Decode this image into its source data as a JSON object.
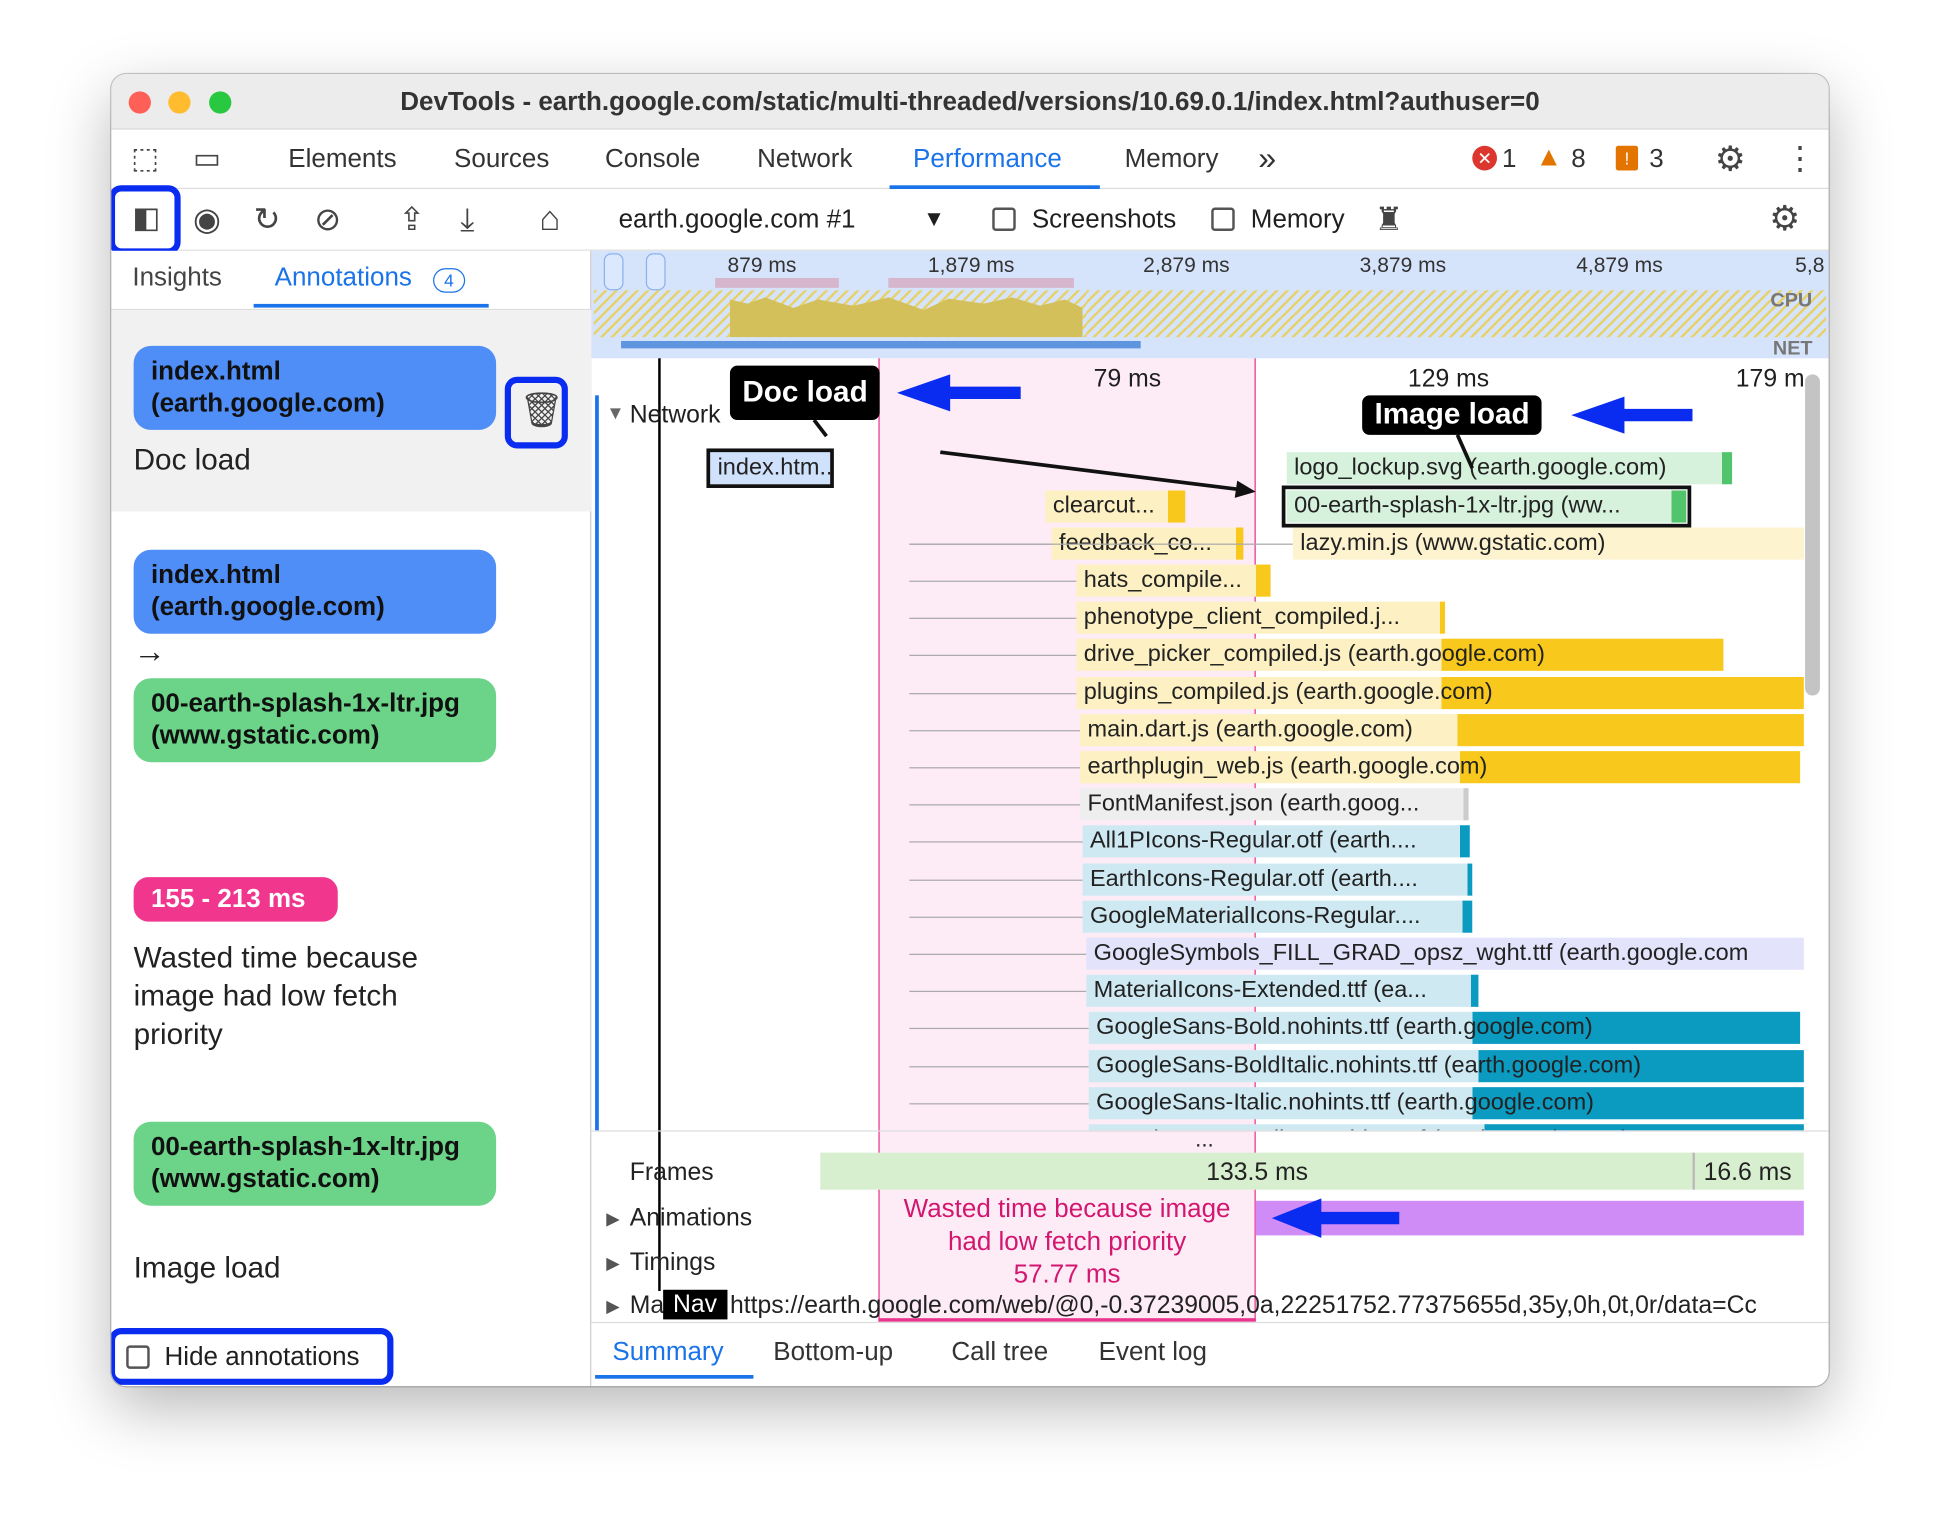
{
  "window_title": "DevTools - earth.google.com/static/multi-threaded/versions/10.69.0.1/index.html?authuser=0",
  "tabs": [
    "Elements",
    "Sources",
    "Console",
    "Network",
    "Performance",
    "Memory"
  ],
  "active_tab": "Performance",
  "more_tabs": "»",
  "status": {
    "errors": "1",
    "warnings": "8",
    "issues": "3"
  },
  "toolbar": {
    "target": "earth.google.com #1",
    "screenshots_label": "Screenshots",
    "memory_label": "Memory"
  },
  "sidebar": {
    "tabs": {
      "insights": "Insights",
      "annotations": "Annotations",
      "annotations_count": "4"
    },
    "annotations": [
      {
        "entry": "index.html (earth.google.com)",
        "label": "Doc load"
      },
      {
        "from": "index.html (earth.google.com)",
        "arrow": "→",
        "to": "00-earth-splash-1x-ltr.jpg (www.gstatic.com)"
      },
      {
        "range": "155 - 213 ms",
        "label": "Wasted time because image had low fetch priority"
      },
      {
        "entry": "00-earth-splash-1x-ltr.jpg (www.gstatic.com)",
        "label": "Image load"
      }
    ],
    "hide_annotations": "Hide annotations"
  },
  "overview": {
    "ticks": [
      "879 ms",
      "1,879 ms",
      "2,879 ms",
      "3,879 ms",
      "4,879 ms",
      "5,8"
    ],
    "cpu": "CPU",
    "net": "NET"
  },
  "timeline": {
    "ticks": [
      "79 ms",
      "129 ms",
      "179 m"
    ],
    "network_label": "Network",
    "callouts": {
      "doc": "Doc load",
      "image": "Image load"
    },
    "rows": [
      {
        "name": "index.htm...",
        "color": "#d0e1fb"
      },
      {
        "name": "logo_lockup.svg (earth.google.com)",
        "color": "#d6f2dc"
      },
      {
        "name": "clearcut...",
        "color": "#fdf0c2"
      },
      {
        "name": "00-earth-splash-1x-ltr.jpg (ww...",
        "color": "#d6f2dc"
      },
      {
        "name": "feedback_co...",
        "color": "#fdf0c2"
      },
      {
        "name": "lazy.min.js (www.gstatic.com)",
        "color": "#fdf3cf"
      },
      {
        "name": "hats_compile...",
        "color": "#fdf0c2"
      },
      {
        "name": "phenotype_client_compiled.j...",
        "color": "#fdf0c2"
      },
      {
        "name": "drive_picker_compiled.js (earth.google.com)",
        "color": "#fdf0c2"
      },
      {
        "name": "plugins_compiled.js (earth.google.com)",
        "color": "#fdf0c2"
      },
      {
        "name": "main.dart.js (earth.google.com)",
        "color": "#fdf0c2"
      },
      {
        "name": "earthplugin_web.js (earth.google.com)",
        "color": "#fdf0c2"
      },
      {
        "name": "FontManifest.json (earth.goog...",
        "color": "#eeeeee"
      },
      {
        "name": "All1PIcons-Regular.otf (earth....",
        "color": "#cfe9f3"
      },
      {
        "name": "EarthIcons-Regular.otf (earth....",
        "color": "#cfe9f3"
      },
      {
        "name": "GoogleMaterialIcons-Regular....",
        "color": "#cfe9f3"
      },
      {
        "name": "GoogleSymbols_FILL_GRAD_opsz_wght.ttf (earth.google.com",
        "color": "#e3e3fb"
      },
      {
        "name": "MaterialIcons-Extended.ttf (ea...",
        "color": "#cfe9f3"
      },
      {
        "name": "GoogleSans-Bold.nohints.ttf (earth.google.com)",
        "color": "#cfe9f3"
      },
      {
        "name": "GoogleSans-BoldItalic.nohints.ttf (earth.google.com)",
        "color": "#cfe9f3"
      },
      {
        "name": "GoogleSans-Italic.nohints.ttf (earth.google.com)",
        "color": "#cfe9f3"
      },
      {
        "name": "GoogleSans-Medium.nohints.ttf (earth.google.com)",
        "color": "#cfe9f3"
      }
    ],
    "more": "...",
    "tracks": {
      "frames": "Frames",
      "frame1": "133.5 ms",
      "frame2": "16.6 ms",
      "animations": "Animations",
      "timings": "Timings",
      "main": "Ma",
      "nav": "Nav",
      "url": "https://earth.google.com/web/@0,-0.37239005,0a,22251752.77375655d,35y,0h,0t,0r/data=Cc"
    },
    "wasted": {
      "line1": "Wasted time because image",
      "line2": "had low fetch priority",
      "duration": "57.77 ms"
    }
  },
  "bottom_tabs": [
    "Summary",
    "Bottom-up",
    "Call tree",
    "Event log"
  ],
  "colors": {
    "accent": "#1a73e8",
    "highlight": "#0a2cf0",
    "wasted": "#e8368f",
    "annotation_blue": "#4f8ef7",
    "annotation_green": "#6bd488"
  }
}
